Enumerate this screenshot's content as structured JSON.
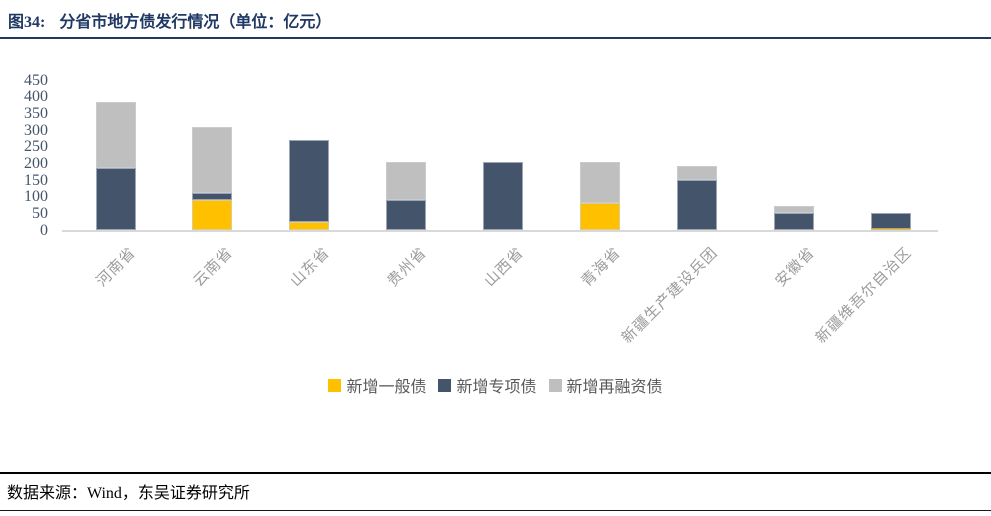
{
  "header": {
    "figure_label": "图34:",
    "title": "分省市地方债发行情况（单位：亿元）"
  },
  "chart_data": {
    "type": "bar",
    "stacked": true,
    "title": "分省市地方债发行情况",
    "unit": "亿元",
    "categories": [
      "河南省",
      "云南省",
      "山东省",
      "贵州省",
      "山西省",
      "青海省",
      "新疆生产建设兵团",
      "安徽省",
      "新疆维吾尔自治区"
    ],
    "series": [
      {
        "name": "新增一般债",
        "color": "#FFC000",
        "values": [
          0,
          90,
          25,
          0,
          0,
          80,
          0,
          0,
          3
        ]
      },
      {
        "name": "新增专项债",
        "color": "#44546A",
        "values": [
          185,
          20,
          245,
          90,
          205,
          0,
          150,
          50,
          49
        ]
      },
      {
        "name": "新增再融资债",
        "color": "#BFBFBF",
        "values": [
          200,
          200,
          0,
          115,
          0,
          125,
          43,
          22,
          0
        ]
      }
    ],
    "totals": [
      385,
      310,
      270,
      205,
      205,
      205,
      193,
      72,
      52
    ],
    "ylim": [
      0,
      450
    ],
    "ytick_step": 50,
    "grid": false,
    "legend_position": "bottom"
  },
  "footer": {
    "source": "数据来源：Wind，东吴证券研究所"
  },
  "colors": {
    "title": "#1F3864",
    "title_rule": "#1F3864",
    "ytick_text": "#44546A",
    "category_text": "#9c9c9c",
    "legend_text": "#595959",
    "axis_line": "#d9d9d9"
  }
}
